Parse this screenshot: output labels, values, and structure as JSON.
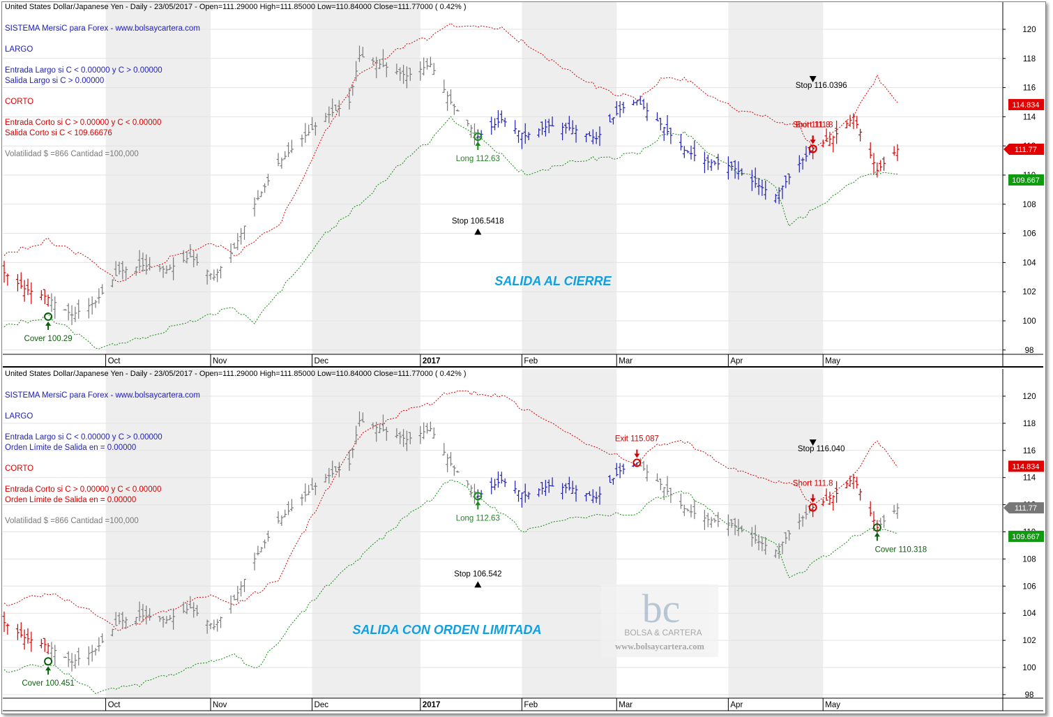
{
  "colors": {
    "blue": "#1f1fb4",
    "red": "#d40000",
    "green": "#118811",
    "gray": "#7a7a7a",
    "title_cyan": "#10a0e0",
    "shade": "#eeeeee"
  },
  "x_months": [
    {
      "label": "Oct",
      "day": "2016-10-01"
    },
    {
      "label": "Nov",
      "day": "2016-11-01"
    },
    {
      "label": "Dec",
      "day": "2016-12-01"
    },
    {
      "label": "2017",
      "day": "2017-01-02"
    },
    {
      "label": "Feb",
      "day": "2017-02-01"
    },
    {
      "label": "Mar",
      "day": "2017-03-01"
    },
    {
      "label": "Apr",
      "day": "2017-04-03"
    },
    {
      "label": "May",
      "day": "2017-05-01"
    }
  ],
  "panels": [
    {
      "header": "United States Dollar/Japanese Yen - Daily - 23/05/2017 -   Open=111.29000   High=111.85000   Low=110.84000   Close=111.77000   ( 0.42% )",
      "info_lines": [
        {
          "text": "SISTEMA MersiC para Forex  -  www.bolsaycartera.com",
          "color": "blue"
        },
        {
          "text": "LARGO",
          "color": "blue"
        },
        {
          "text": "Entrada Largo si C < 0.00000  y  C > 0.00000",
          "color": "blue"
        },
        {
          "text": "Salida Largo si    C > 0.00000",
          "color": "blue"
        },
        {
          "text": "CORTO",
          "color": "red"
        },
        {
          "text": "Entrada Corto si  C > 0.00000  y  C < 0.00000",
          "color": "red"
        },
        {
          "text": "Salida Corto si    C < 109.66676",
          "color": "red"
        },
        {
          "text": "Volatilidad $ =866  Cantidad =100,000",
          "color": "gray"
        }
      ],
      "big_label": "SALIDA AL CIERRE",
      "price_tags": [
        {
          "text": "114.834",
          "value": 114.834,
          "kind": "red"
        },
        {
          "text": "111.77",
          "value": 111.77,
          "kind": "red-arrow"
        },
        {
          "text": "109.667",
          "value": 109.667,
          "kind": "green"
        }
      ],
      "annotations": [
        {
          "text": "Cover 100.29",
          "day": "2016-09-14",
          "value": 100.29,
          "kind": "cover"
        },
        {
          "text": "Long 112.63",
          "day": "2017-01-19",
          "value": 112.63,
          "kind": "long"
        },
        {
          "text": "Stop 106.5418",
          "day": "2017-01-19",
          "value": 106.1,
          "kind": "stop-up"
        },
        {
          "text": "Stop 116.0396",
          "day": "2017-04-28",
          "value": 116.6,
          "kind": "stop-down"
        },
        {
          "text": "Exit 111.8",
          "day": "2017-04-28",
          "value": 111.8,
          "kind": "exit"
        },
        {
          "text": "Short 111.8",
          "day": "2017-04-28",
          "value": 111.8,
          "kind": "short-overlap"
        }
      ],
      "segments": [
        {
          "from": "2016-09-01",
          "to": "2016-09-14",
          "color": "red"
        },
        {
          "from": "2016-09-15",
          "to": "2017-01-18",
          "color": "gray"
        },
        {
          "from": "2017-01-19",
          "to": "2017-04-27",
          "color": "blue"
        },
        {
          "from": "2017-04-28",
          "to": "2017-05-23",
          "color": "red"
        }
      ]
    },
    {
      "header": "United States Dollar/Japanese Yen - Daily - 23/05/2017 -   Open=111.29000   High=111.85000   Low=110.84000   Close=111.77000   ( 0.42% )",
      "info_lines": [
        {
          "text": "SISTEMA MersiC para Forex  -  www.bolsaycartera.com",
          "color": "blue"
        },
        {
          "text": "LARGO",
          "color": "blue"
        },
        {
          "text": "Entrada Largo si C < 0.00000  y  C > 0.00000",
          "color": "blue"
        },
        {
          "text": "Orden Límite de Salida en = 0.00000",
          "color": "blue"
        },
        {
          "text": "CORTO",
          "color": "red"
        },
        {
          "text": "Entrada Corto si  C > 0.00000  y  C < 0.00000",
          "color": "red"
        },
        {
          "text": "Orden Límite de Salida en = 0.00000",
          "color": "red"
        },
        {
          "text": "Volatilidad $ =866  Cantidad =100,000",
          "color": "gray"
        }
      ],
      "big_label": "SALIDA CON ORDEN LIMITADA",
      "price_tags": [
        {
          "text": "114.834",
          "value": 114.834,
          "kind": "red"
        },
        {
          "text": "111.77",
          "value": 111.77,
          "kind": "gray-arrow"
        },
        {
          "text": "109.667",
          "value": 109.667,
          "kind": "green"
        }
      ],
      "annotations": [
        {
          "text": "Cover 100.451",
          "day": "2016-09-14",
          "value": 100.451,
          "kind": "cover"
        },
        {
          "text": "Long 112.63",
          "day": "2017-01-19",
          "value": 112.63,
          "kind": "long"
        },
        {
          "text": "Stop  106.542",
          "day": "2017-01-19",
          "value": 106.1,
          "kind": "stop-up"
        },
        {
          "text": "Exit 115.087",
          "day": "2017-03-07",
          "value": 115.087,
          "kind": "exit"
        },
        {
          "text": "Stop 116.040",
          "day": "2017-04-28",
          "value": 116.6,
          "kind": "stop-down"
        },
        {
          "text": "Short 111.8",
          "day": "2017-04-28",
          "value": 111.8,
          "kind": "short"
        },
        {
          "text": "Cover 110.318",
          "day": "2017-05-17",
          "value": 110.318,
          "kind": "cover2"
        }
      ],
      "segments": [
        {
          "from": "2016-09-01",
          "to": "2016-09-14",
          "color": "red"
        },
        {
          "from": "2016-09-15",
          "to": "2017-01-18",
          "color": "gray"
        },
        {
          "from": "2017-01-19",
          "to": "2017-03-07",
          "color": "blue"
        },
        {
          "from": "2017-03-08",
          "to": "2017-04-27",
          "color": "gray"
        },
        {
          "from": "2017-04-28",
          "to": "2017-05-17",
          "color": "red"
        },
        {
          "from": "2017-05-18",
          "to": "2017-05-23",
          "color": "gray"
        }
      ]
    }
  ],
  "watermark": {
    "logo": "bc",
    "line1": "BOLSA & CARTERA",
    "line2": "www.bolsaycartera.com"
  },
  "chart_data": {
    "type": "ohlc",
    "title": "United States Dollar/Japanese Yen - Daily - 23/05/2017",
    "xlabel": "",
    "ylabel": "",
    "ylim": [
      97,
      121
    ],
    "y_ticks": [
      98,
      100,
      102,
      104,
      106,
      108,
      110,
      112,
      114,
      116,
      118,
      120
    ],
    "x_range": [
      "2016-09-01",
      "2017-05-23"
    ],
    "last_bar": {
      "open": 111.29,
      "high": 111.85,
      "low": 110.84,
      "close": 111.77,
      "change_pct": 0.42
    },
    "close_series": [
      [
        "2016-09-01",
        103.3
      ],
      [
        "2016-09-07",
        102.2
      ],
      [
        "2016-09-14",
        101.6
      ],
      [
        "2016-09-21",
        100.4
      ],
      [
        "2016-09-28",
        101.3
      ],
      [
        "2016-10-05",
        103.4
      ],
      [
        "2016-10-12",
        103.8
      ],
      [
        "2016-10-19",
        103.5
      ],
      [
        "2016-10-26",
        104.4
      ],
      [
        "2016-11-02",
        103.0
      ],
      [
        "2016-11-08",
        105.0
      ],
      [
        "2016-11-14",
        108.0
      ],
      [
        "2016-11-21",
        110.8
      ],
      [
        "2016-11-28",
        112.5
      ],
      [
        "2016-12-05",
        114.0
      ],
      [
        "2016-12-12",
        115.0
      ],
      [
        "2016-12-15",
        118.2
      ],
      [
        "2016-12-22",
        117.5
      ],
      [
        "2016-12-29",
        116.8
      ],
      [
        "2017-01-05",
        117.6
      ],
      [
        "2017-01-11",
        115.0
      ],
      [
        "2017-01-19",
        112.63
      ],
      [
        "2017-01-26",
        113.8
      ],
      [
        "2017-02-02",
        112.7
      ],
      [
        "2017-02-09",
        113.4
      ],
      [
        "2017-02-16",
        113.2
      ],
      [
        "2017-02-23",
        112.5
      ],
      [
        "2017-03-02",
        114.5
      ],
      [
        "2017-03-07",
        115.087
      ],
      [
        "2017-03-14",
        113.5
      ],
      [
        "2017-03-21",
        111.7
      ],
      [
        "2017-03-28",
        110.9
      ],
      [
        "2017-04-04",
        110.6
      ],
      [
        "2017-04-11",
        109.4
      ],
      [
        "2017-04-17",
        108.6
      ],
      [
        "2017-04-24",
        110.8
      ],
      [
        "2017-04-28",
        111.8
      ],
      [
        "2017-05-04",
        112.6
      ],
      [
        "2017-05-10",
        114.0
      ],
      [
        "2017-05-17",
        110.318
      ],
      [
        "2017-05-23",
        111.77
      ]
    ],
    "upper_band": [
      [
        "2016-09-01",
        104.6
      ],
      [
        "2016-09-14",
        105.5
      ],
      [
        "2016-09-28",
        104.0
      ],
      [
        "2016-10-05",
        102.7
      ],
      [
        "2016-10-26",
        104.9
      ],
      [
        "2016-11-02",
        105.3
      ],
      [
        "2016-11-08",
        104.5
      ],
      [
        "2016-11-21",
        106.5
      ],
      [
        "2016-12-05",
        113.0
      ],
      [
        "2016-12-15",
        117.0
      ],
      [
        "2016-12-29",
        119.0
      ],
      [
        "2017-01-05",
        119.5
      ],
      [
        "2017-01-11",
        120.4
      ],
      [
        "2017-01-26",
        120.0
      ],
      [
        "2017-02-09",
        118.0
      ],
      [
        "2017-02-23",
        116.1
      ],
      [
        "2017-03-07",
        115.1
      ],
      [
        "2017-03-14",
        116.5
      ],
      [
        "2017-03-21",
        116.6
      ],
      [
        "2017-04-04",
        114.6
      ],
      [
        "2017-04-24",
        113.3
      ],
      [
        "2017-04-28",
        111.8
      ],
      [
        "2017-05-10",
        114.1
      ],
      [
        "2017-05-17",
        116.8
      ],
      [
        "2017-05-23",
        114.8
      ]
    ],
    "lower_band": [
      [
        "2016-09-01",
        99.7
      ],
      [
        "2016-09-14",
        100.3
      ],
      [
        "2016-09-28",
        98.2
      ],
      [
        "2016-10-12",
        98.8
      ],
      [
        "2016-10-26",
        100.0
      ],
      [
        "2016-11-08",
        100.9
      ],
      [
        "2016-11-14",
        99.8
      ],
      [
        "2016-11-28",
        104.0
      ],
      [
        "2016-12-05",
        106.0
      ],
      [
        "2016-12-15",
        108.0
      ],
      [
        "2016-12-29",
        111.2
      ],
      [
        "2017-01-05",
        112.4
      ],
      [
        "2017-01-11",
        114.0
      ],
      [
        "2017-01-19",
        112.63
      ],
      [
        "2017-02-02",
        110.0
      ],
      [
        "2017-02-16",
        111.0
      ],
      [
        "2017-03-07",
        111.4
      ],
      [
        "2017-03-14",
        112.6
      ],
      [
        "2017-03-21",
        112.9
      ],
      [
        "2017-04-04",
        110.4
      ],
      [
        "2017-04-17",
        109.3
      ],
      [
        "2017-04-21",
        106.5
      ],
      [
        "2017-04-28",
        107.6
      ],
      [
        "2017-05-10",
        109.6
      ],
      [
        "2017-05-17",
        110.3
      ],
      [
        "2017-05-23",
        109.9
      ]
    ]
  }
}
